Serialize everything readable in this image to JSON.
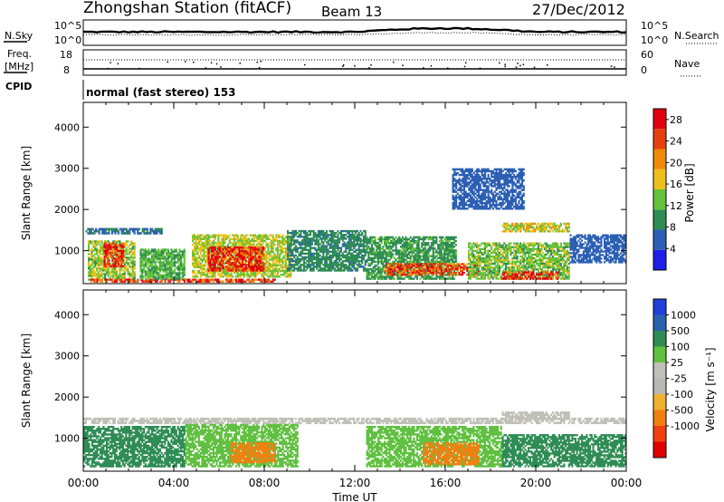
{
  "header": {
    "station": "Zhongshan Station (fitACF)",
    "beam": "Beam 13",
    "date": "27/Dec/2012"
  },
  "top_panels": {
    "nsky_label": "N.Sky",
    "nsearch_label": "N.Search",
    "noise_ticks_left": [
      "10^5",
      "10^0"
    ],
    "noise_ticks_right": [
      "10^5",
      "10^0"
    ],
    "freq_label_1": "Freq.",
    "freq_label_2": "[MHz]",
    "freq_ticks": [
      "18",
      "8"
    ],
    "nave_label": "Nave",
    "nave_ticks": [
      "60",
      "0"
    ],
    "cpid_label": "CPID",
    "cpid_text": "normal (fast stereo) 153"
  },
  "colors": {
    "power_scale": [
      "#1e20e6",
      "#2c5fb4",
      "#2f8c55",
      "#66c23a",
      "#f0c01a",
      "#f08a0a",
      "#e5410e",
      "#e0000e"
    ],
    "velocity_scale": [
      "#2040d8",
      "#2a60b0",
      "#2f8c55",
      "#60c040",
      "#c0c0b8",
      "#b8b8b4",
      "#f0b030",
      "#f08010",
      "#f04010",
      "#e00000"
    ]
  },
  "chart_data": [
    {
      "type": "heatmap",
      "name": "power",
      "ylabel": "Slant Range [km]",
      "xlabel": "Time UT",
      "ylim": [
        200,
        4600
      ],
      "xlim": [
        0,
        24
      ],
      "y_ticks": [
        "1000",
        "2000",
        "3000",
        "4000"
      ],
      "x_ticks": [
        "00:00",
        "04:00",
        "08:00",
        "12:00",
        "16:00",
        "20:00",
        "00:00"
      ],
      "colorbar": {
        "label": "Power [dB]",
        "ticks": [
          "4",
          "8",
          "12",
          "16",
          "20",
          "24",
          "28"
        ],
        "range": [
          0,
          30
        ]
      },
      "regions": [
        {
          "t0": 0.2,
          "t1": 2.3,
          "r0": 280,
          "r1": 1250,
          "value": 14
        },
        {
          "t0": 0.9,
          "t1": 1.8,
          "r0": 600,
          "r1": 1200,
          "value": 26
        },
        {
          "t0": 0.1,
          "t1": 3.5,
          "r0": 1400,
          "r1": 1550,
          "value": 7
        },
        {
          "t0": 0.3,
          "t1": 8.5,
          "r0": 230,
          "r1": 320,
          "value": 25
        },
        {
          "t0": 2.5,
          "t1": 4.5,
          "r0": 300,
          "r1": 1050,
          "value": 12
        },
        {
          "t0": 4.8,
          "t1": 9.2,
          "r0": 350,
          "r1": 1400,
          "value": 15
        },
        {
          "t0": 5.5,
          "t1": 8.0,
          "r0": 500,
          "r1": 1100,
          "value": 27
        },
        {
          "t0": 9.0,
          "t1": 12.5,
          "r0": 500,
          "r1": 1500,
          "value": 9
        },
        {
          "t0": 12.5,
          "t1": 16.5,
          "r0": 300,
          "r1": 1350,
          "value": 10
        },
        {
          "t0": 13.3,
          "t1": 17.5,
          "r0": 400,
          "r1": 700,
          "value": 24
        },
        {
          "t0": 17.0,
          "t1": 21.5,
          "r0": 300,
          "r1": 1200,
          "value": 13
        },
        {
          "t0": 18.5,
          "t1": 21.0,
          "r0": 300,
          "r1": 500,
          "value": 27
        },
        {
          "t0": 18.5,
          "t1": 21.5,
          "r0": 1450,
          "r1": 1680,
          "value": 16
        },
        {
          "t0": 16.3,
          "t1": 19.5,
          "r0": 2000,
          "r1": 3000,
          "value": 6
        },
        {
          "t0": 21.5,
          "t1": 24.0,
          "r0": 700,
          "r1": 1400,
          "value": 6
        }
      ]
    },
    {
      "type": "heatmap",
      "name": "velocity",
      "ylabel": "Slant Range [km]",
      "xlabel": "Time UT",
      "ylim": [
        200,
        4600
      ],
      "xlim": [
        0,
        24
      ],
      "y_ticks": [
        "1000",
        "2000",
        "3000",
        "4000"
      ],
      "x_ticks": [
        "00:00",
        "04:00",
        "08:00",
        "12:00",
        "16:00",
        "20:00",
        "00:00"
      ],
      "colorbar": {
        "label": "Velocity [m s⁻¹]",
        "ticks": [
          "1000",
          "500",
          "100",
          "25",
          "-25",
          "-100",
          "-500",
          "-1000"
        ]
      },
      "regions": [
        {
          "t0": 0.0,
          "t1": 4.5,
          "r0": 300,
          "r1": 1300,
          "value": 300
        },
        {
          "t0": 4.5,
          "t1": 9.5,
          "r0": 300,
          "r1": 1350,
          "value": 60
        },
        {
          "t0": 6.5,
          "t1": 8.5,
          "r0": 400,
          "r1": 900,
          "value": -300
        },
        {
          "t0": 0.0,
          "t1": 24.0,
          "r0": 1350,
          "r1": 1500,
          "value": 0
        },
        {
          "t0": 12.5,
          "t1": 18.5,
          "r0": 300,
          "r1": 1300,
          "value": 80
        },
        {
          "t0": 15.0,
          "t1": 17.5,
          "r0": 350,
          "r1": 900,
          "value": -250
        },
        {
          "t0": 18.5,
          "t1": 24.0,
          "r0": 300,
          "r1": 1100,
          "value": 200
        },
        {
          "t0": 18.5,
          "t1": 21.5,
          "r0": 1450,
          "r1": 1650,
          "value": 0
        }
      ]
    }
  ]
}
